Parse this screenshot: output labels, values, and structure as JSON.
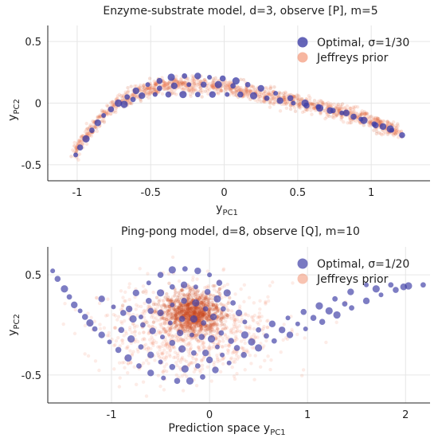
{
  "charts": [
    {
      "title": "Enzyme-substrate model, d=3, observe [P], m=5",
      "xlabel_main": "y",
      "xlabel_sub": "PC1",
      "ylabel_main": "y",
      "ylabel_sub": "PC2",
      "x_ticks": [
        {
          "v": -1,
          "t": "-1"
        },
        {
          "v": -0.5,
          "t": "-0.5"
        },
        {
          "v": 0,
          "t": "0"
        },
        {
          "v": 0.5,
          "t": "0.5"
        },
        {
          "v": 1,
          "t": "1"
        }
      ],
      "y_ticks": [
        {
          "v": -0.5,
          "t": "-0.5"
        },
        {
          "v": 0,
          "t": "0"
        },
        {
          "v": 0.5,
          "t": "0.5"
        }
      ],
      "legend": [
        "Optimal, σ=1/30",
        "Jeffreys prior"
      ]
    },
    {
      "title": "Ping-pong model, d=8, observe [Q], m=10",
      "xlabel_main": "Prediction space y",
      "xlabel_sub": "PC1",
      "ylabel_main": "y",
      "ylabel_sub": "PC2",
      "x_ticks": [
        {
          "v": -1,
          "t": "-1"
        },
        {
          "v": 0,
          "t": "0"
        },
        {
          "v": 1,
          "t": "1"
        },
        {
          "v": 2,
          "t": "2"
        }
      ],
      "y_ticks": [
        {
          "v": -0.5,
          "t": "-0.5"
        },
        {
          "v": 0.5,
          "t": "0.5"
        }
      ],
      "legend": [
        "Optimal, σ=1/20",
        "Jeffreys prior"
      ]
    }
  ],
  "colors": {
    "optimal": "#3f3fa6",
    "jeffreys": "#f07a52",
    "jeffreys_dense": "#c94a1e"
  },
  "chart_data": [
    {
      "type": "scatter",
      "title": "Enzyme-substrate model, d=3, observe [P], m=5",
      "xlabel": "yPC1",
      "ylabel": "yPC2",
      "xlim": [
        -1.2,
        1.4
      ],
      "ylim": [
        -0.63,
        0.63
      ],
      "grid": true,
      "legend_position": "top-right",
      "series": [
        {
          "name": "Optimal, σ=1/30",
          "marker": "circle",
          "points": [
            [
              -1.01,
              -0.42
            ],
            [
              -0.98,
              -0.36
            ],
            [
              -0.94,
              -0.29
            ],
            [
              -0.9,
              -0.22
            ],
            [
              -0.86,
              -0.16
            ],
            [
              -0.82,
              -0.1
            ],
            [
              -0.77,
              -0.05
            ],
            [
              -0.72,
              0.0
            ],
            [
              -0.66,
              0.05
            ],
            [
              -0.6,
              0.1
            ],
            [
              -0.52,
              0.15
            ],
            [
              -0.44,
              0.18
            ],
            [
              -0.36,
              0.21
            ],
            [
              -0.27,
              0.22
            ],
            [
              -0.18,
              0.22
            ],
            [
              -0.1,
              0.21
            ],
            [
              -0.01,
              0.2
            ],
            [
              0.08,
              0.18
            ],
            [
              0.16,
              0.15
            ],
            [
              0.25,
              0.12
            ],
            [
              0.35,
              0.08
            ],
            [
              0.45,
              0.04
            ],
            [
              0.55,
              0.0
            ],
            [
              0.64,
              -0.03
            ],
            [
              0.72,
              -0.06
            ],
            [
              0.8,
              -0.08
            ],
            [
              0.88,
              -0.11
            ],
            [
              0.95,
              -0.14
            ],
            [
              1.02,
              -0.17
            ],
            [
              1.08,
              -0.19
            ],
            [
              1.14,
              -0.22
            ],
            [
              1.21,
              -0.26
            ],
            [
              -0.68,
              -0.01
            ],
            [
              -0.62,
              0.03
            ],
            [
              -0.56,
              0.06
            ],
            [
              -0.47,
              0.07
            ],
            [
              -0.38,
              0.07
            ],
            [
              -0.28,
              0.07
            ],
            [
              -0.18,
              0.07
            ],
            [
              -0.08,
              0.07
            ],
            [
              0.02,
              0.07
            ],
            [
              0.11,
              0.07
            ],
            [
              0.2,
              0.06
            ],
            [
              0.29,
              0.04
            ],
            [
              0.38,
              0.02
            ],
            [
              0.47,
              0.0
            ],
            [
              0.56,
              -0.02
            ],
            [
              0.65,
              -0.04
            ],
            [
              0.74,
              -0.06
            ],
            [
              0.83,
              -0.08
            ],
            [
              0.93,
              -0.13
            ],
            [
              1.03,
              -0.18
            ],
            [
              1.13,
              -0.21
            ],
            [
              -0.44,
              0.12
            ],
            [
              -0.34,
              0.14
            ],
            [
              -0.24,
              0.15
            ],
            [
              -0.14,
              0.15
            ],
            [
              -0.04,
              0.15
            ],
            [
              0.06,
              0.14
            ]
          ]
        },
        {
          "name": "Jeffreys prior",
          "marker": "circle-transparent",
          "curve_center": [
            [
              -1.02,
              -0.4
            ],
            [
              -0.9,
              -0.2
            ],
            [
              -0.75,
              -0.02
            ],
            [
              -0.6,
              0.08
            ],
            [
              -0.45,
              0.13
            ],
            [
              -0.3,
              0.15
            ],
            [
              -0.15,
              0.15
            ],
            [
              0.0,
              0.13
            ],
            [
              0.15,
              0.1
            ],
            [
              0.3,
              0.06
            ],
            [
              0.45,
              0.02
            ],
            [
              0.6,
              -0.02
            ],
            [
              0.75,
              -0.06
            ],
            [
              0.9,
              -0.11
            ],
            [
              1.05,
              -0.17
            ],
            [
              1.2,
              -0.24
            ]
          ],
          "band_halfwidth": 0.07
        }
      ]
    },
    {
      "type": "scatter",
      "title": "Ping-pong model, d=8, observe [Q], m=10",
      "xlabel": "Prediction space yPC1",
      "ylabel": "yPC2",
      "xlim": [
        -1.65,
        2.25
      ],
      "ylim": [
        -0.78,
        0.78
      ],
      "grid": true,
      "legend_position": "top-right",
      "series": [
        {
          "name": "Optimal, σ=1/20",
          "marker": "circle",
          "points": [
            [
              -1.6,
              0.54
            ],
            [
              -1.55,
              0.46
            ],
            [
              -1.48,
              0.36
            ],
            [
              -1.43,
              0.28
            ],
            [
              -1.38,
              0.2
            ],
            [
              -1.32,
              0.14
            ],
            [
              -1.27,
              0.08
            ],
            [
              -1.22,
              0.02
            ],
            [
              -1.17,
              -0.04
            ],
            [
              -1.1,
              -0.1
            ],
            [
              -1.02,
              -0.17
            ],
            [
              -0.93,
              -0.25
            ],
            [
              -0.83,
              -0.33
            ],
            [
              -0.72,
              -0.41
            ],
            [
              -0.6,
              -0.48
            ],
            [
              -0.47,
              -0.53
            ],
            [
              -0.33,
              -0.56
            ],
            [
              -0.2,
              -0.56
            ],
            [
              -0.07,
              -0.52
            ],
            [
              0.06,
              -0.45
            ],
            [
              0.2,
              -0.38
            ],
            [
              0.35,
              -0.3
            ],
            [
              0.5,
              -0.23
            ],
            [
              0.66,
              -0.16
            ],
            [
              0.82,
              -0.1
            ],
            [
              0.98,
              -0.04
            ],
            [
              1.15,
              0.03
            ],
            [
              1.3,
              0.1
            ],
            [
              1.45,
              0.17
            ],
            [
              1.6,
              0.24
            ],
            [
              1.75,
              0.3
            ],
            [
              1.9,
              0.35
            ],
            [
              2.03,
              0.39
            ],
            [
              2.18,
              0.4
            ],
            [
              -1.1,
              0.26
            ],
            [
              -0.98,
              0.18
            ],
            [
              -0.88,
              0.12
            ],
            [
              -0.78,
              0.06
            ],
            [
              -0.68,
              0.0
            ],
            [
              -0.58,
              -0.06
            ],
            [
              -0.48,
              -0.12
            ],
            [
              -0.38,
              -0.18
            ],
            [
              -0.28,
              -0.24
            ],
            [
              -0.16,
              -0.28
            ],
            [
              -0.04,
              -0.28
            ],
            [
              0.08,
              -0.22
            ],
            [
              0.22,
              -0.16
            ],
            [
              0.36,
              -0.1
            ],
            [
              0.5,
              -0.05
            ],
            [
              0.64,
              0.01
            ],
            [
              0.8,
              0.07
            ],
            [
              0.96,
              0.13
            ],
            [
              1.12,
              0.19
            ],
            [
              1.28,
              0.26
            ],
            [
              1.44,
              0.33
            ],
            [
              1.6,
              0.4
            ],
            [
              -0.9,
              -0.05
            ],
            [
              -0.8,
              -0.14
            ],
            [
              -0.7,
              -0.22
            ],
            [
              -0.6,
              -0.3
            ],
            [
              -0.5,
              -0.37
            ],
            [
              -0.38,
              -0.42
            ],
            [
              -0.25,
              -0.44
            ],
            [
              -0.12,
              -0.41
            ],
            [
              0.0,
              -0.35
            ],
            [
              0.13,
              -0.3
            ],
            [
              0.28,
              -0.23
            ],
            [
              0.43,
              -0.17
            ],
            [
              0.58,
              -0.11
            ],
            [
              0.74,
              -0.05
            ],
            [
              0.9,
              0.01
            ],
            [
              1.06,
              0.07
            ],
            [
              1.22,
              0.14
            ],
            [
              1.38,
              0.21
            ],
            [
              -0.75,
              0.32
            ],
            [
              -0.62,
              0.42
            ],
            [
              -0.5,
              0.5
            ],
            [
              -0.38,
              0.55
            ],
            [
              -0.25,
              0.56
            ],
            [
              -0.12,
              0.54
            ],
            [
              0.0,
              0.5
            ],
            [
              0.1,
              0.42
            ],
            [
              0.18,
              0.32
            ],
            [
              0.24,
              0.22
            ],
            [
              0.3,
              0.12
            ],
            [
              0.36,
              0.03
            ],
            [
              -0.62,
              0.24
            ],
            [
              -0.5,
              0.32
            ],
            [
              -0.38,
              0.38
            ],
            [
              -0.26,
              0.4
            ],
            [
              -0.14,
              0.38
            ],
            [
              -0.02,
              0.33
            ],
            [
              0.08,
              0.26
            ],
            [
              0.14,
              0.16
            ],
            [
              -0.5,
              0.12
            ],
            [
              -0.38,
              0.2
            ],
            [
              -0.26,
              0.24
            ],
            [
              -0.14,
              0.22
            ],
            [
              -0.04,
              0.16
            ],
            [
              0.04,
              0.08
            ],
            [
              -0.4,
              0.02
            ],
            [
              -0.28,
              0.06
            ],
            [
              -0.16,
              0.06
            ],
            [
              -0.06,
              0.02
            ],
            [
              -0.3,
              -0.08
            ],
            [
              -0.18,
              -0.1
            ],
            [
              -0.08,
              -0.12
            ],
            [
              0.02,
              -0.14
            ],
            [
              0.12,
              -0.08
            ],
            [
              -0.82,
              0.16
            ],
            [
              -0.7,
              0.08
            ],
            [
              -0.6,
              0.14
            ],
            [
              1.7,
              0.36
            ],
            [
              1.85,
              0.4
            ],
            [
              1.98,
              0.38
            ]
          ]
        },
        {
          "name": "Jeffreys prior",
          "marker": "circle-transparent",
          "center": [
            -0.2,
            -0.05
          ],
          "spread": [
            0.42,
            0.22
          ],
          "peak": [
            -0.18,
            0.12
          ]
        }
      ]
    }
  ]
}
